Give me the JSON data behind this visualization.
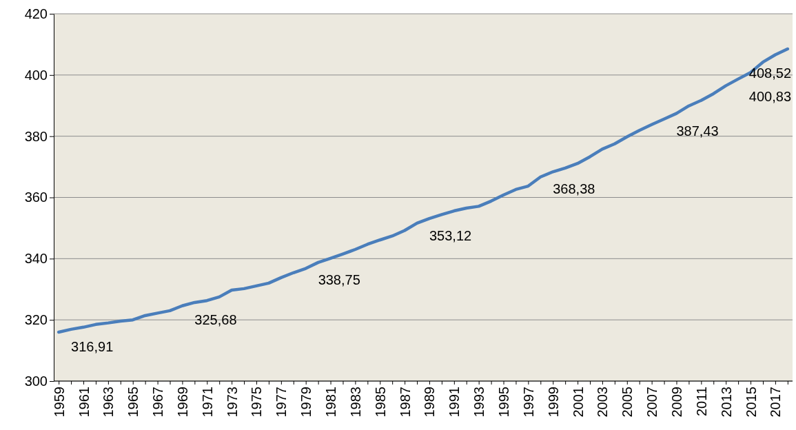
{
  "chart_data": {
    "type": "line",
    "categories": [
      "1959",
      null,
      "1961",
      null,
      "1963",
      null,
      "1965",
      null,
      "1967",
      null,
      "1969",
      null,
      "1971",
      null,
      "1973",
      null,
      "1975",
      null,
      "1977",
      null,
      "1979",
      null,
      "1981",
      null,
      "1983",
      null,
      "1985",
      null,
      "1987",
      null,
      "1989",
      null,
      "1991",
      null,
      "1993",
      null,
      "1995",
      null,
      "1997",
      null,
      "1999",
      null,
      "2001",
      null,
      "2003",
      null,
      "2005",
      null,
      "2007",
      null,
      "2009",
      null,
      "2011",
      null,
      "2013",
      null,
      "2015",
      null,
      "2017",
      null
    ],
    "values": [
      316,
      316.91,
      317.6,
      318.5,
      319,
      319.6,
      320,
      321.4,
      322.2,
      323,
      324.6,
      325.68,
      326.3,
      327.5,
      329.7,
      330.2,
      331.1,
      332,
      333.8,
      335.4,
      336.8,
      338.75,
      340.1,
      341.5,
      343,
      344.7,
      346.1,
      347.4,
      349.2,
      351.6,
      353.12,
      354.4,
      355.6,
      356.5,
      357.1,
      358.8,
      360.8,
      362.6,
      363.7,
      366.7,
      368.38,
      369.6,
      371.1,
      373.3,
      375.8,
      377.5,
      379.8,
      381.9,
      383.8,
      385.6,
      387.43,
      389.9,
      391.7,
      393.9,
      396.5,
      398.7,
      400.83,
      404.2,
      406.6,
      408.52
    ],
    "value_labels": [
      null,
      "316,91",
      null,
      null,
      null,
      null,
      null,
      null,
      null,
      null,
      null,
      "325,68",
      null,
      null,
      null,
      null,
      null,
      null,
      null,
      null,
      null,
      "338,75",
      null,
      null,
      null,
      null,
      null,
      null,
      null,
      null,
      "353,12",
      null,
      null,
      null,
      null,
      null,
      null,
      null,
      null,
      null,
      "368,38",
      null,
      null,
      null,
      null,
      null,
      null,
      null,
      null,
      null,
      "387,43",
      null,
      null,
      null,
      null,
      null,
      "400,83",
      null,
      null,
      "408,52"
    ],
    "color": "#4a7ebb",
    "ylim": [
      300,
      420
    ],
    "yticks": [
      300,
      320,
      340,
      360,
      380,
      400,
      420
    ],
    "grid": "y",
    "marker": "none",
    "line_style": "solid"
  }
}
